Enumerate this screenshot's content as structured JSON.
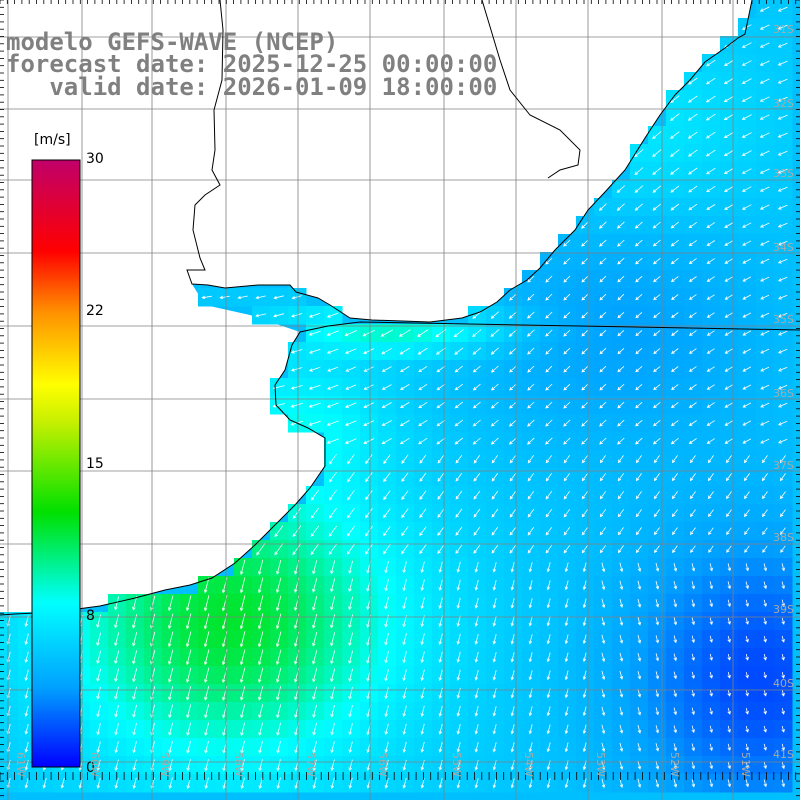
{
  "title": {
    "line1": "modelo GEFS-WAVE (NCEP)",
    "line2": "forecast date: 2025-12-25 00:00:00",
    "line3": "   valid date: 2026-01-09 18:00:00"
  },
  "colorbar": {
    "unit": "[m/s]",
    "ticks": [
      "30",
      "22",
      "15",
      "8",
      "0"
    ],
    "tick_values": [
      30,
      22,
      15,
      8,
      0
    ],
    "min": 0,
    "max": 30,
    "colors": [
      "#0000ff",
      "#00a0ff",
      "#00ffff",
      "#00e000",
      "#ffff00",
      "#ff8000",
      "#ff0000",
      "#c0006a"
    ]
  },
  "lat_labels": [
    "31S",
    "32S",
    "33S",
    "34S",
    "35S",
    "36S",
    "37S",
    "38S",
    "39S",
    "40S",
    "41S"
  ],
  "lon_labels": [
    "61W",
    "60W",
    "59W",
    "58W",
    "57W",
    "56W",
    "55W",
    "54W",
    "53W",
    "52W",
    "51W"
  ],
  "map": {
    "field": "wind speed",
    "land_color": "#ffffff",
    "coastline_color": "#000000",
    "grid_color": "#808080",
    "arrow_color": "#ffffff"
  }
}
